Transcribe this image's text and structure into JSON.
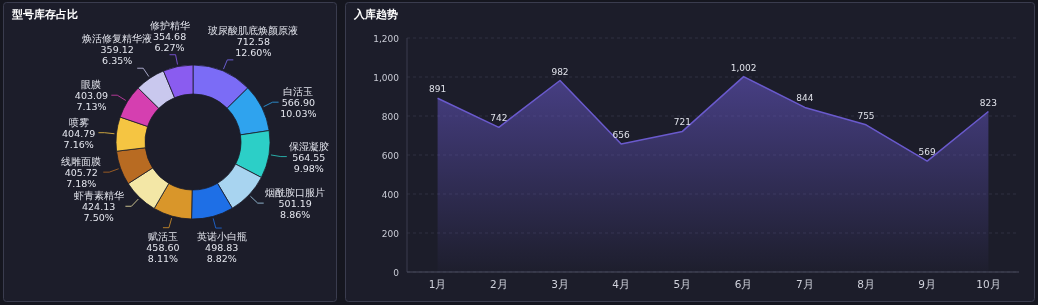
{
  "chart_data": [
    {
      "type": "donut",
      "title": "型号库存占比",
      "categories": [
        "玻尿酸肌底焕颜原液",
        "白活玉",
        "保湿凝胶",
        "烟酰胺口服片",
        "英诺小白瓶",
        "赋活玉",
        "虾青素精华",
        "线雕面膜",
        "喷雾",
        "眼膜",
        "焕活修复精华液",
        "修护精华"
      ],
      "values": [
        712.58,
        566.9,
        564.55,
        501.19,
        498.83,
        458.6,
        424.13,
        405.72,
        404.79,
        403.09,
        359.12,
        354.68
      ],
      "value_labels": [
        "712.58\n12.60%",
        "566.90\n10.03%",
        "564.55\n9.98%",
        "501.19\n8.86%",
        "498.83\n8.82%",
        "458.60\n8.11%",
        "424.13\n7.50%",
        "405.72\n7.18%",
        "404.79\n7.16%",
        "403.09\n7.13%",
        "359.12\n6.35%",
        "354.68\n6.27%"
      ],
      "colors": [
        "#7b6cf6",
        "#2fa3ee",
        "#2ccfc7",
        "#a8d4f0",
        "#1e6fe6",
        "#d9962a",
        "#f3e7a6",
        "#b86b22",
        "#f5c542",
        "#d53fb0",
        "#c9c8ee",
        "#8a5cf0"
      ]
    },
    {
      "type": "area",
      "title": "入库趋势",
      "categories": [
        "1月",
        "2月",
        "3月",
        "4月",
        "5月",
        "6月",
        "7月",
        "8月",
        "9月",
        "10月"
      ],
      "series": [
        {
          "color": "#6a5acd",
          "values": [
            891,
            742,
            982,
            656,
            721,
            1002,
            844,
            755,
            569,
            823
          ]
        }
      ],
      "ylim": [
        0,
        1200
      ],
      "yticks": [
        0,
        200,
        400,
        600,
        800,
        {
          "value": 1000,
          "label": "1,000"
        },
        {
          "value": 1200,
          "label": "1,200"
        }
      ],
      "value_labels": [
        "891",
        "742",
        "982",
        "656",
        "721",
        "1,002",
        "844",
        "755",
        "569",
        "823"
      ],
      "grid": "y"
    }
  ]
}
